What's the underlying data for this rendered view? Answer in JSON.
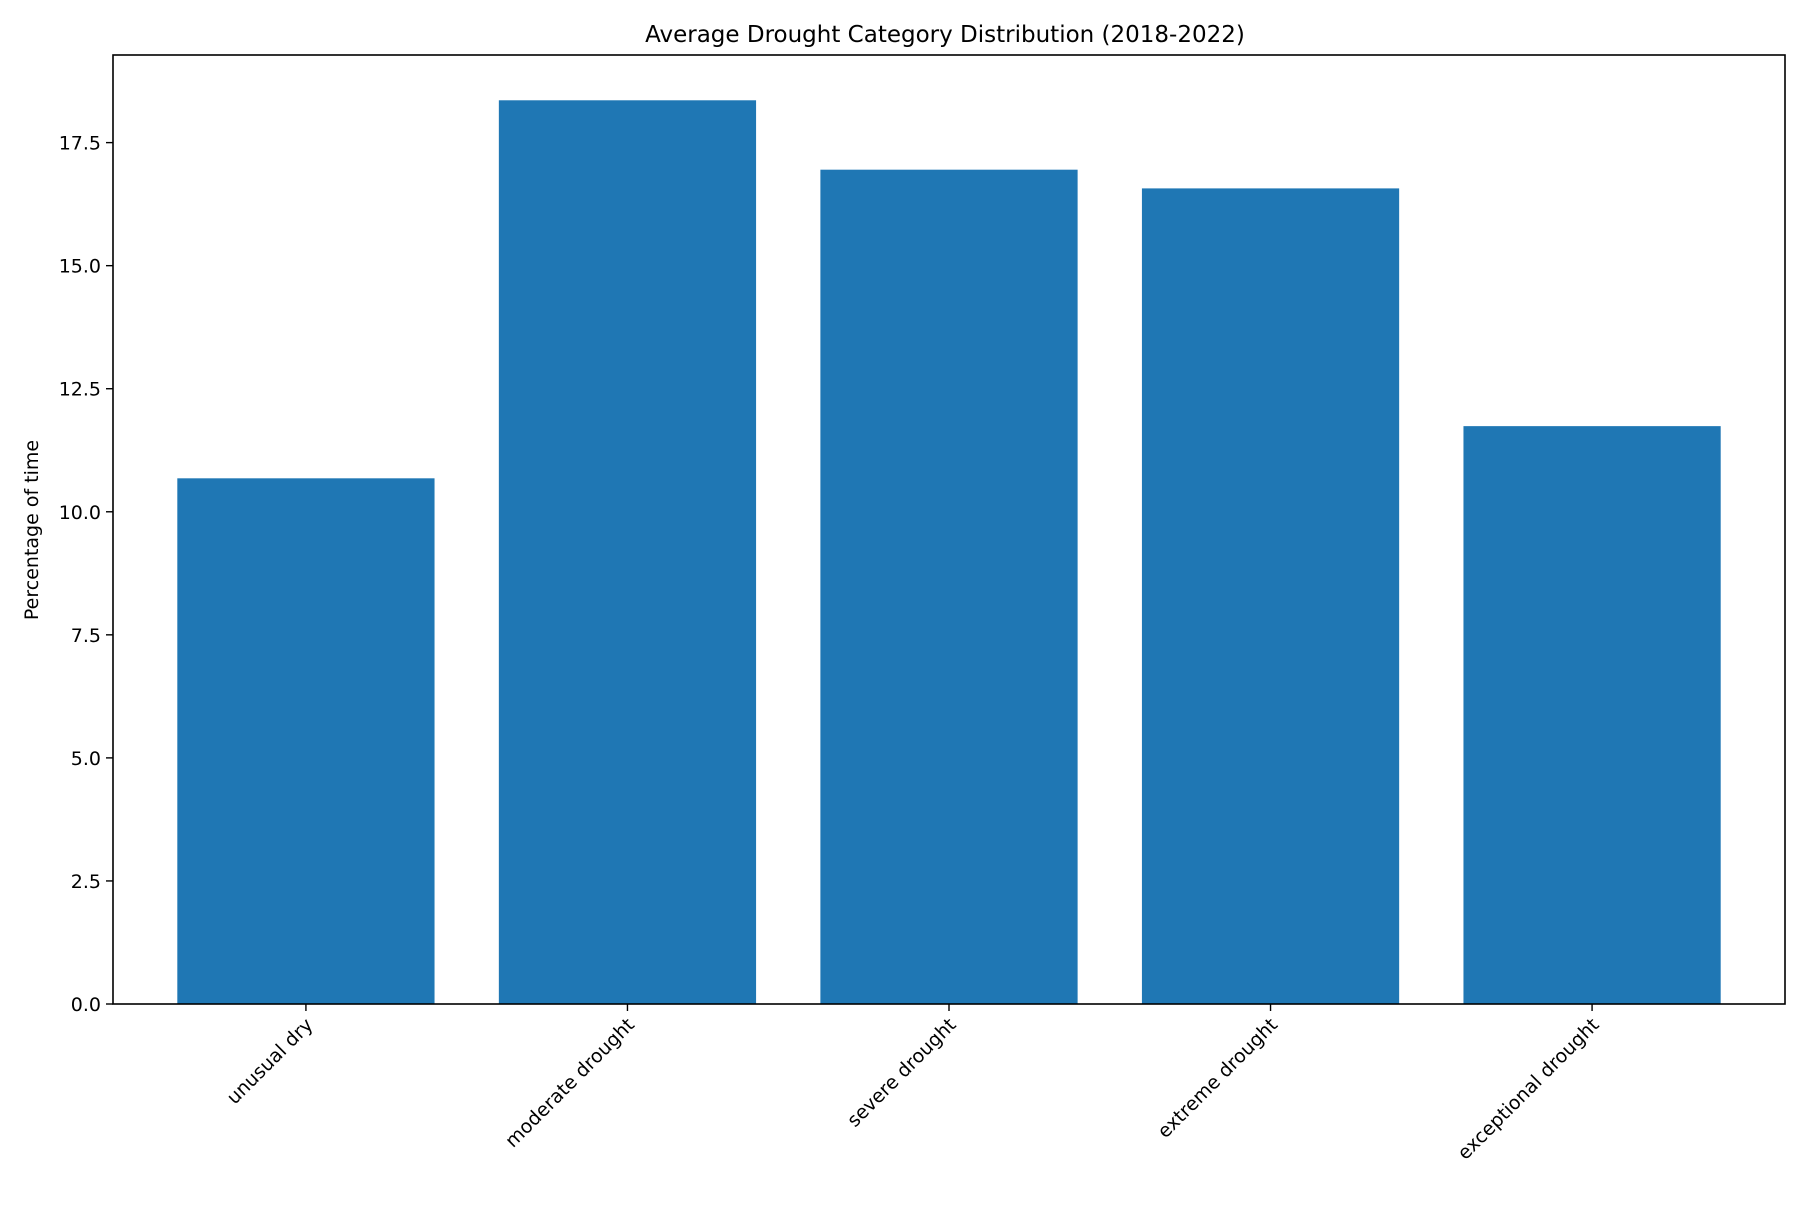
{
  "chart_data": {
    "type": "bar",
    "title": "Average Drought Category Distribution (2018-2022)",
    "xlabel": "",
    "ylabel": "Percentage of time",
    "categories": [
      "unusual dry",
      "moderate drought",
      "severe drought",
      "extreme drought",
      "exceptional drought"
    ],
    "values": [
      10.68,
      18.36,
      16.95,
      16.57,
      11.74
    ],
    "ylim": [
      0,
      19.28
    ],
    "yticks": [
      0.0,
      2.5,
      5.0,
      7.5,
      10.0,
      12.5,
      15.0,
      17.5
    ],
    "ytick_labels": [
      "0.0",
      "2.5",
      "5.0",
      "7.5",
      "10.0",
      "12.5",
      "15.0",
      "17.5"
    ],
    "bar_color": "#1f77b4",
    "grid": false,
    "legend": false
  }
}
